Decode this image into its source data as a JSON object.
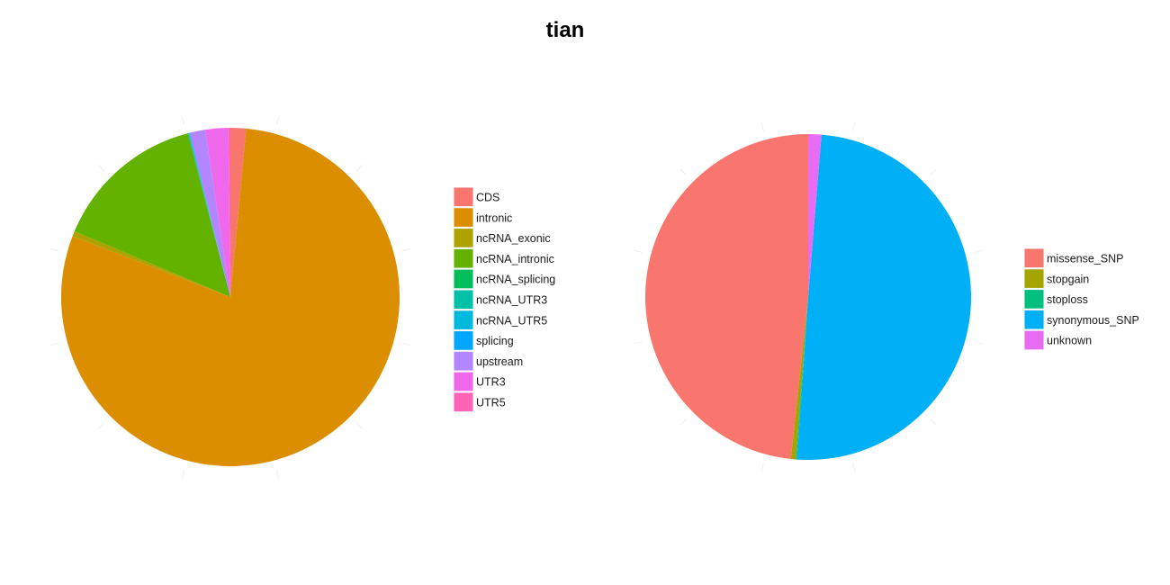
{
  "title": "tian",
  "chart_data": [
    {
      "type": "pie",
      "title": "",
      "legend_position": "right",
      "start": "top",
      "direction": "clockwise",
      "slices": [
        {
          "label": "CDS",
          "value": 1.5,
          "color": "#F8766D"
        },
        {
          "label": "intronic",
          "value": 80.0,
          "color": "#DB8E00"
        },
        {
          "label": "ncRNA_exonic",
          "value": 0.5,
          "color": "#AEA200"
        },
        {
          "label": "ncRNA_intronic",
          "value": 14.7,
          "color": "#64B200"
        },
        {
          "label": "ncRNA_splicing",
          "value": 0.05,
          "color": "#00BD5C"
        },
        {
          "label": "ncRNA_UTR3",
          "value": 0.05,
          "color": "#00C1A7"
        },
        {
          "label": "ncRNA_UTR5",
          "value": 0.05,
          "color": "#00BADE"
        },
        {
          "label": "splicing",
          "value": 0.05,
          "color": "#00A6FF"
        },
        {
          "label": "upstream",
          "value": 1.5,
          "color": "#B385FF"
        },
        {
          "label": "UTR3",
          "value": 2.2,
          "color": "#EF67EB"
        },
        {
          "label": "UTR5",
          "value": 0.2,
          "color": "#FF63B6"
        }
      ]
    },
    {
      "type": "pie",
      "title": "",
      "legend_position": "right",
      "start": "top",
      "direction": "counterclockwise",
      "slices": [
        {
          "label": "missense_SNP",
          "value": 48.3,
          "color": "#F8766D"
        },
        {
          "label": "stopgain",
          "value": 0.5,
          "color": "#A3A500"
        },
        {
          "label": "stoploss",
          "value": 0.1,
          "color": "#00BF7D"
        },
        {
          "label": "synonymous_SNP",
          "value": 49.8,
          "color": "#00B0F6"
        },
        {
          "label": "unknown",
          "value": 1.3,
          "color": "#E76BF3"
        }
      ]
    }
  ]
}
